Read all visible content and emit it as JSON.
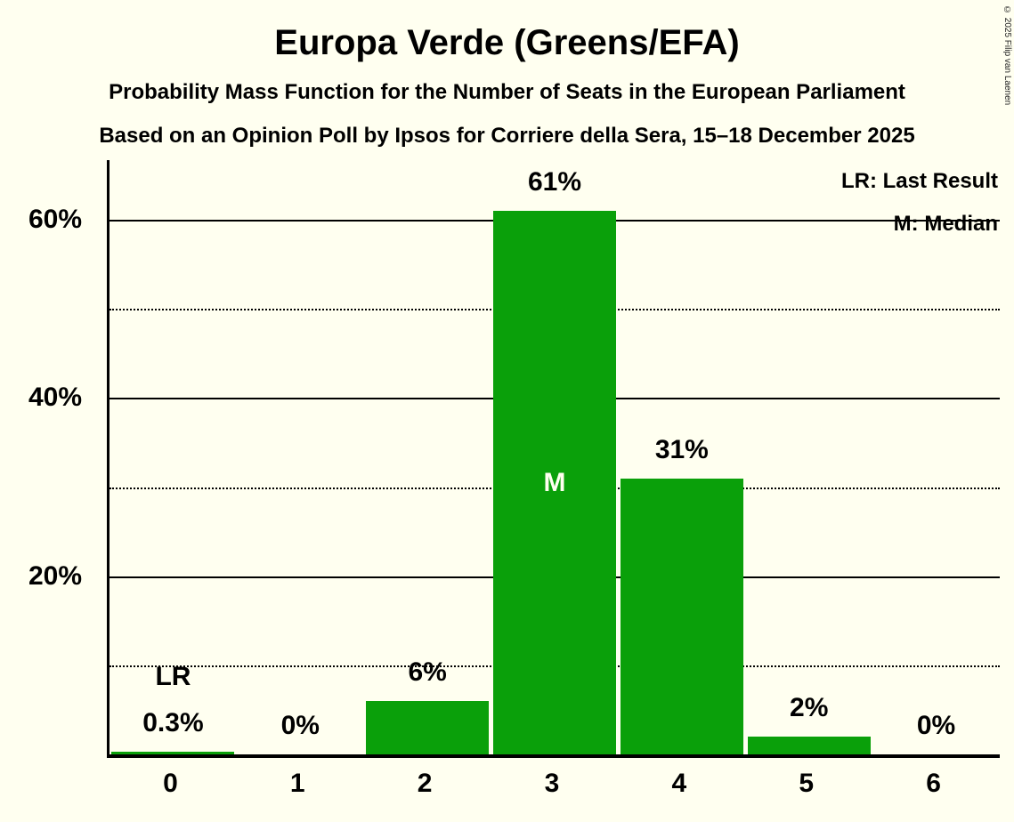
{
  "page": {
    "copyright": "© 2025 Filip van Laenen",
    "background_color": "#fffff0"
  },
  "legend": {
    "last_result": "LR: Last Result",
    "median": "M: Median"
  },
  "chart_data": {
    "type": "bar",
    "title": "Europa Verde (Greens/EFA)",
    "subtitle": "Probability Mass Function for the Number of Seats in the European Parliament",
    "source": "Based on an Opinion Poll by Ipsos for Corriere della Sera, 15–18 December 2025",
    "categories": [
      "0",
      "1",
      "2",
      "3",
      "4",
      "5",
      "6"
    ],
    "values": [
      0.3,
      0,
      6,
      61,
      31,
      2,
      0
    ],
    "bar_labels": [
      "0.3%",
      "0%",
      "6%",
      "61%",
      "31%",
      "2%",
      "0%"
    ],
    "median_category": "3",
    "median_marker": "M",
    "last_result_category": "0",
    "last_result_marker": "LR",
    "bar_color": "#0aa00a",
    "ylim": [
      0,
      66.7
    ],
    "solid_gridlines": [
      20,
      40,
      60
    ],
    "dotted_gridlines": [
      10,
      30,
      50
    ],
    "ytick_labels": [
      "20%",
      "40%",
      "60%"
    ],
    "legend_position": "top-right",
    "grid": true
  }
}
